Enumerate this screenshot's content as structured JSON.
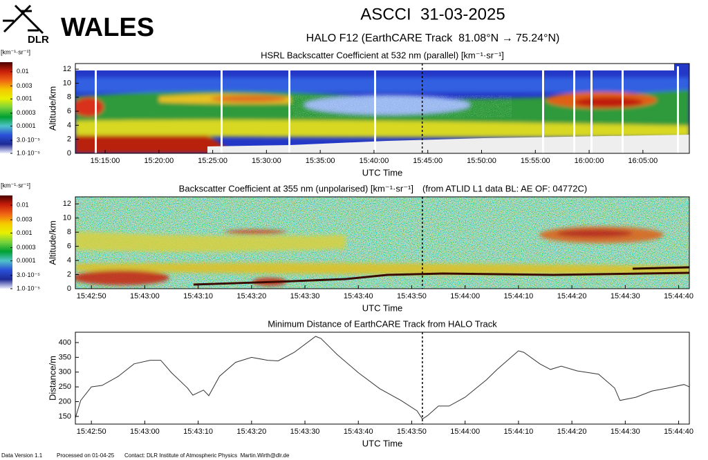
{
  "header": {
    "logo": "DLR",
    "project": "WALES",
    "title": "ASCCI  31-03-2025",
    "subtitle": "HALO F12 (EarthCARE Track  81.08°N → 75.24°N)"
  },
  "chart_data": [
    {
      "type": "heatmap",
      "title": "HSRL Backscatter Coefficient at 532 nm (parallel) [km⁻¹·sr⁻¹]",
      "ylabel": "Altitude/km",
      "xlabel": "UTC Time",
      "xlim": [
        "15:12:14",
        "16:09:19"
      ],
      "xticks": [
        "15:15:00",
        "15:20:00",
        "15:25:00",
        "15:30:00",
        "15:35:00",
        "15:40:00",
        "15:45:00",
        "15:50:00",
        "15:55:00",
        "16:00:00",
        "16:05:00"
      ],
      "ylim": [
        0,
        12.8
      ],
      "yticks": [
        0,
        2,
        4,
        6,
        8,
        10,
        12
      ],
      "vline": "15:44:29",
      "colorbar": {
        "label": "[km⁻¹·sr⁻¹]",
        "log": true,
        "lim": [
          1e-05,
          0.02
        ],
        "colors": [
          "#4a0000",
          "#c81e0a",
          "#f06414",
          "#f5c800",
          "#e8f000",
          "#78d23c",
          "#00a032",
          "#4fc3c8",
          "#2a50d8",
          "#1e2a96",
          "#eef0ff"
        ],
        "ticks": [
          0.01,
          0.003,
          0.001,
          0.0003,
          0.0001,
          {
            "value": 3e-05,
            "label": "3.0·10⁻⁵"
          },
          {
            "value": 1e-05,
            "label": "1.0·10⁻⁵"
          }
        ]
      }
    },
    {
      "type": "heatmap",
      "title": "Backscatter Coefficient at 355 nm (unpolarised) [km⁻¹·sr⁻¹]",
      "title_note": "(from ATLID L1 data BL: AE OF: 04772C)",
      "ylabel": "Altitude/km",
      "xlabel": "UTC Time",
      "xlim": [
        "15:42:47",
        "15:44:42"
      ],
      "xticks": [
        "15:42:50",
        "15:43:00",
        "15:43:10",
        "15:43:20",
        "15:43:30",
        "15:43:40",
        "15:43:50",
        "15:44:00",
        "15:44:10",
        "15:44:20",
        "15:44:30",
        "15:44:40"
      ],
      "ylim": [
        0,
        13
      ],
      "yticks": [
        0,
        2,
        4,
        6,
        8,
        10,
        12
      ],
      "vline": "15:43:52",
      "colorbar": {
        "label": "[km⁻¹·sr⁻¹]",
        "log": true,
        "lim": [
          1e-05,
          0.02
        ],
        "colors": [
          "#4a0000",
          "#c81e0a",
          "#f06414",
          "#f5c800",
          "#e8f000",
          "#78d23c",
          "#00a032",
          "#4fc3c8",
          "#2a50d8",
          "#1e2a96",
          "#eef0ff"
        ],
        "ticks": [
          0.01,
          0.003,
          0.001,
          0.0003,
          0.0001,
          {
            "value": 3e-05,
            "label": "3.0·10⁻⁵"
          },
          {
            "value": 1e-05,
            "label": "1.0·10⁻⁵"
          }
        ]
      }
    },
    {
      "type": "line",
      "title": "Minimum Distance of EarthCARE Track from HALO Track",
      "ylabel": "Distance/m",
      "xlabel": "UTC Time",
      "color": "#333333",
      "xlim": [
        "15:42:47",
        "15:44:42"
      ],
      "xticks": [
        "15:42:50",
        "15:43:00",
        "15:43:10",
        "15:43:20",
        "15:43:30",
        "15:43:40",
        "15:43:50",
        "15:44:00",
        "15:44:10",
        "15:44:20",
        "15:44:30",
        "15:44:40"
      ],
      "ylim": [
        124,
        435
      ],
      "yticks": [
        150,
        200,
        250,
        300,
        350,
        400
      ],
      "vline": "15:43:52",
      "x": [
        "15:42:47",
        "15:42:48",
        "15:42:50",
        "15:42:52",
        "15:42:55",
        "15:42:58",
        "15:43:01",
        "15:43:03",
        "15:43:05",
        "15:43:08",
        "15:43:09",
        "15:43:11",
        "15:43:12",
        "15:43:14",
        "15:43:17",
        "15:43:20",
        "15:43:23",
        "15:43:25",
        "15:43:28",
        "15:43:32",
        "15:43:33",
        "15:43:36",
        "15:43:40",
        "15:43:44",
        "15:43:48",
        "15:43:51",
        "15:43:52",
        "15:43:53",
        "15:43:55",
        "15:43:57",
        "15:44:00",
        "15:44:04",
        "15:44:06",
        "15:44:10",
        "15:44:11",
        "15:44:14",
        "15:44:16",
        "15:44:18",
        "15:44:21",
        "15:44:25",
        "15:44:28",
        "15:44:29",
        "15:44:32",
        "15:44:35",
        "15:44:38",
        "15:44:41",
        "15:44:42"
      ],
      "values": [
        145,
        204,
        250,
        255,
        285,
        328,
        340,
        340,
        298,
        246,
        222,
        239,
        220,
        286,
        333,
        350,
        340,
        338,
        367,
        421,
        414,
        360,
        298,
        244,
        204,
        169,
        141,
        153,
        185,
        185,
        215,
        274,
        309,
        372,
        367,
        328,
        309,
        320,
        304,
        293,
        246,
        204,
        215,
        236,
        246,
        258,
        250
      ]
    }
  ],
  "footer": {
    "version": "Data Version 1.1",
    "processed": "Processed on 01-04-25",
    "contact": "Contact: DLR Institute of Atmospheric Physics  Martin.Wirth@dlr.de"
  }
}
